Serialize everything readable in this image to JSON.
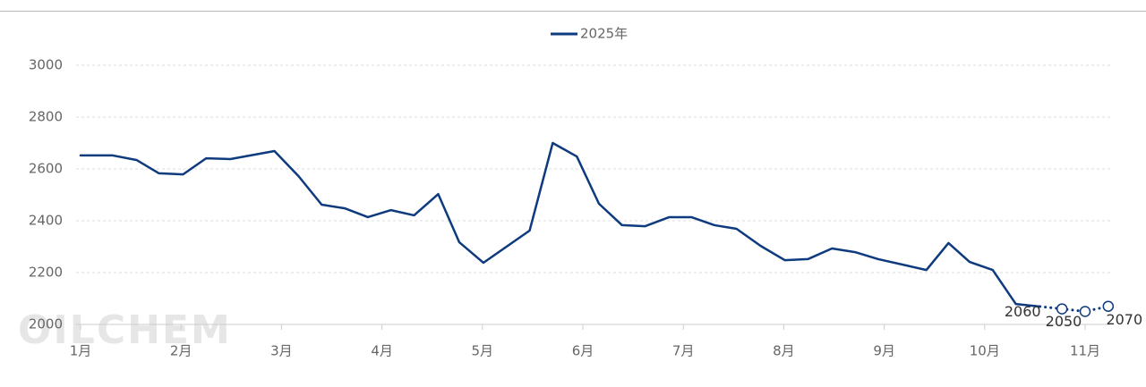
{
  "chart_data": {
    "type": "line",
    "legend": "top",
    "watermark": "OILCHEM",
    "grid": true,
    "xlim": [
      0.95,
      11.25
    ],
    "xticks": [
      {
        "value": 1,
        "label": "1月"
      },
      {
        "value": 2,
        "label": "2月"
      },
      {
        "value": 3,
        "label": "3月"
      },
      {
        "value": 4,
        "label": "4月"
      },
      {
        "value": 5,
        "label": "5月"
      },
      {
        "value": 6,
        "label": "6月"
      },
      {
        "value": 7,
        "label": "7月"
      },
      {
        "value": 8,
        "label": "8月"
      },
      {
        "value": 9,
        "label": "9月"
      },
      {
        "value": 10,
        "label": "10月"
      },
      {
        "value": 11,
        "label": "11月"
      }
    ],
    "ylim": [
      2000,
      3000
    ],
    "yticks": [
      2000,
      2200,
      2400,
      2600,
      2800,
      3000
    ],
    "series": [
      {
        "name": "2025年",
        "color": "#0e3a7e",
        "line_style": "solid",
        "x": [
          1.0,
          1.32,
          1.56,
          1.78,
          2.02,
          2.25,
          2.49,
          2.93,
          3.17,
          3.4,
          3.63,
          3.86,
          4.09,
          4.32,
          4.56,
          4.77,
          5.01,
          5.47,
          5.7,
          5.94,
          6.16,
          6.39,
          6.62,
          6.86,
          7.08,
          7.31,
          7.53,
          7.77,
          8.01,
          8.24,
          8.48,
          8.71,
          8.94,
          9.42,
          9.64,
          9.85,
          10.08,
          10.31,
          10.55
        ],
        "values": [
          2652,
          2652,
          2634,
          2583,
          2579,
          2641,
          2638,
          2669,
          2572,
          2462,
          2448,
          2414,
          2441,
          2421,
          2503,
          2317,
          2238,
          2362,
          2700,
          2648,
          2466,
          2383,
          2379,
          2414,
          2414,
          2383,
          2369,
          2303,
          2248,
          2252,
          2293,
          2279,
          2252,
          2210,
          2314,
          2241,
          2210,
          2079,
          2069
        ]
      },
      {
        "color": "#0e3a7e",
        "line_style": "dotted",
        "markers": "open",
        "data_labels": true,
        "x": [
          10.77,
          11.0,
          11.23
        ],
        "values": [
          2060,
          2050,
          2070
        ]
      }
    ]
  }
}
